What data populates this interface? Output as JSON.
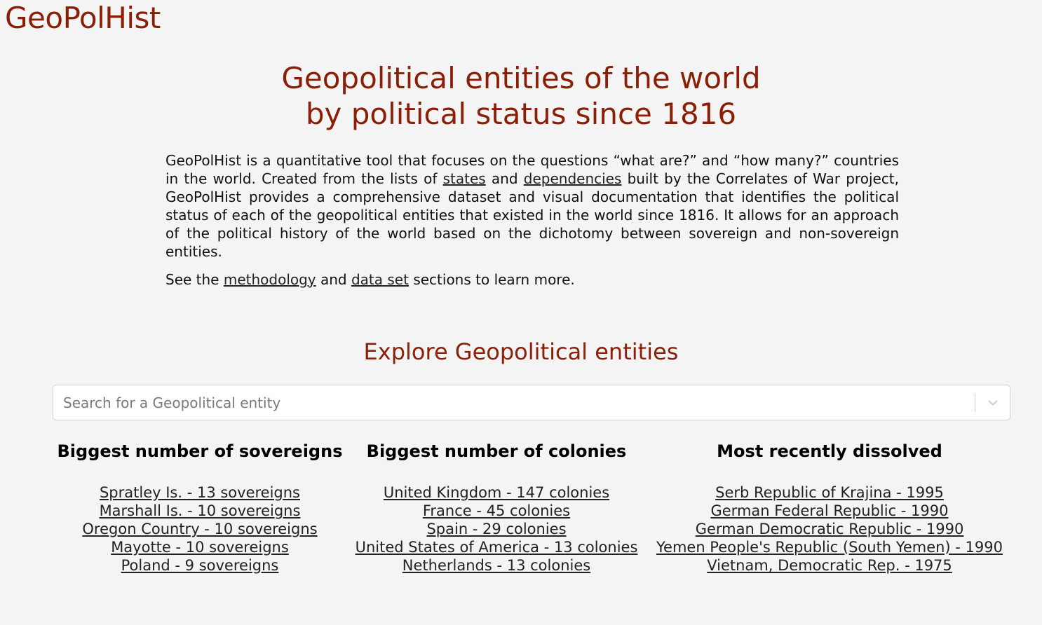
{
  "brand": "GeoPolHist",
  "hero": {
    "title_line1": "Geopolitical entities of the world",
    "title_line2": "by political status since 1816"
  },
  "intro": {
    "p1_a": "GeoPolHist is a quantitative tool that focuses on the questions “what are?” and “how many?” countries in the world. Created from the lists of ",
    "link_states": "states",
    "p1_b": " and ",
    "link_dependencies": "dependencies",
    "p1_c": " built by the Correlates of War project, GeoPolHist provides a comprehensive dataset and visual documentation that identifies the political status of each of the geopolitical entities that existed in the world since 1816. It allows for an approach of the political history of the world based on the dichotomy between sovereign and non-sovereign entities.",
    "p2_a": "See the ",
    "link_methodology": "methodology",
    "p2_b": " and ",
    "link_dataset": "data set",
    "p2_c": " sections to learn more."
  },
  "explore": {
    "title": "Explore Geopolitical entities",
    "search_placeholder": "Search for a Geopolitical entity",
    "search_value": ""
  },
  "columns": [
    {
      "title": "Biggest number of sovereigns",
      "items": [
        "Spratley Is. - 13 sovereigns",
        "Marshall Is. - 10 sovereigns",
        "Oregon Country - 10 sovereigns",
        "Mayotte - 10 sovereigns",
        "Poland - 9 sovereigns"
      ]
    },
    {
      "title": "Biggest number of colonies",
      "items": [
        "United Kingdom - 147 colonies",
        "France - 45 colonies",
        "Spain - 29 colonies",
        "United States of America - 13 colonies",
        "Netherlands - 13 colonies"
      ]
    },
    {
      "title": "Most recently dissolved",
      "items": [
        "Serb Republic of Krajina - 1995",
        "German Federal Republic - 1990",
        "German Democratic Republic - 1990",
        "Yemen People's Republic (South Yemen) - 1990",
        "Vietnam, Democratic Rep. - 1975"
      ]
    }
  ],
  "colors": {
    "accent": "#8a1e06",
    "background": "#f4f4f4",
    "text": "#111111"
  }
}
